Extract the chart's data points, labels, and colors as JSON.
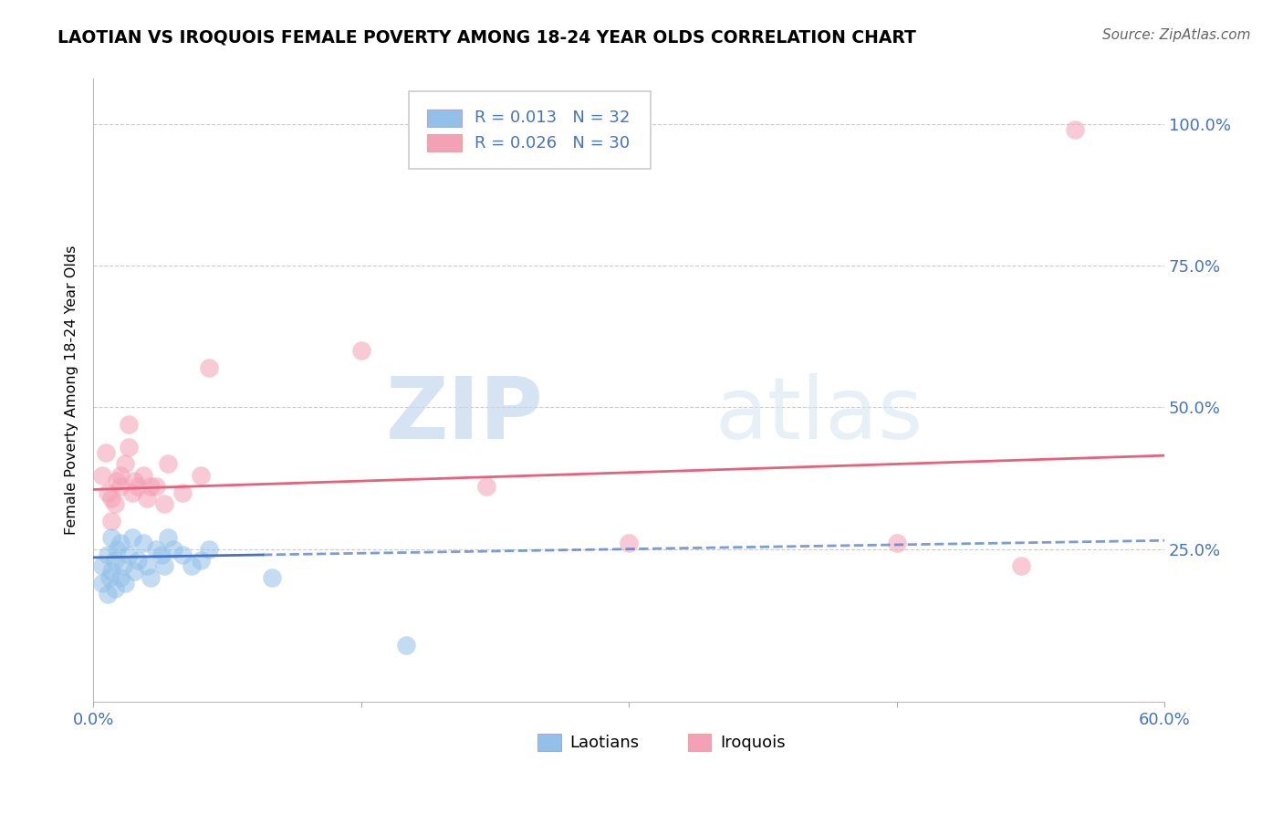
{
  "title": "LAOTIAN VS IROQUOIS FEMALE POVERTY AMONG 18-24 YEAR OLDS CORRELATION CHART",
  "source": "Source: ZipAtlas.com",
  "ylabel": "Female Poverty Among 18-24 Year Olds",
  "xlim": [
    0.0,
    0.6
  ],
  "ylim": [
    -0.02,
    1.08
  ],
  "color_laotian": "#92c0e8",
  "color_iroquois": "#f4a0b5",
  "color_trend_laotian": "#4472c4",
  "color_trend_iroquois": "#e8607a",
  "watermark_zip": "ZIP",
  "watermark_atlas": "atlas",
  "legend_label1": "R = 0.013   N = 32",
  "legend_label2": "R = 0.026   N = 30",
  "legend_label_bottom1": "Laotians",
  "legend_label_bottom2": "Iroquois",
  "laotian_x": [
    0.005,
    0.005,
    0.008,
    0.008,
    0.009,
    0.01,
    0.01,
    0.012,
    0.012,
    0.013,
    0.015,
    0.015,
    0.017,
    0.018,
    0.02,
    0.022,
    0.023,
    0.025,
    0.028,
    0.03,
    0.032,
    0.035,
    0.038,
    0.04,
    0.042,
    0.045,
    0.05,
    0.055,
    0.06,
    0.065,
    0.1,
    0.175
  ],
  "laotian_y": [
    0.22,
    0.19,
    0.24,
    0.17,
    0.2,
    0.21,
    0.27,
    0.23,
    0.18,
    0.25,
    0.2,
    0.26,
    0.22,
    0.19,
    0.24,
    0.27,
    0.21,
    0.23,
    0.26,
    0.22,
    0.2,
    0.25,
    0.24,
    0.22,
    0.27,
    0.25,
    0.24,
    0.22,
    0.23,
    0.25,
    0.2,
    0.08
  ],
  "iroquois_x": [
    0.005,
    0.007,
    0.008,
    0.01,
    0.01,
    0.012,
    0.013,
    0.015,
    0.015,
    0.018,
    0.02,
    0.02,
    0.022,
    0.023,
    0.025,
    0.028,
    0.03,
    0.032,
    0.035,
    0.04,
    0.042,
    0.05,
    0.06,
    0.065,
    0.15,
    0.22,
    0.3,
    0.45,
    0.52,
    0.55
  ],
  "iroquois_y": [
    0.38,
    0.42,
    0.35,
    0.3,
    0.34,
    0.33,
    0.37,
    0.38,
    0.36,
    0.4,
    0.43,
    0.47,
    0.35,
    0.37,
    0.36,
    0.38,
    0.34,
    0.36,
    0.36,
    0.33,
    0.4,
    0.35,
    0.38,
    0.57,
    0.6,
    0.36,
    0.26,
    0.26,
    0.22,
    0.99
  ],
  "trend_lao_x0": 0.0,
  "trend_lao_y0": 0.235,
  "trend_lao_x1": 0.6,
  "trend_lao_y1": 0.265,
  "trend_lao_solid_end": 0.095,
  "trend_iro_x0": 0.0,
  "trend_iro_y0": 0.355,
  "trend_iro_x1": 0.6,
  "trend_iro_y1": 0.415
}
